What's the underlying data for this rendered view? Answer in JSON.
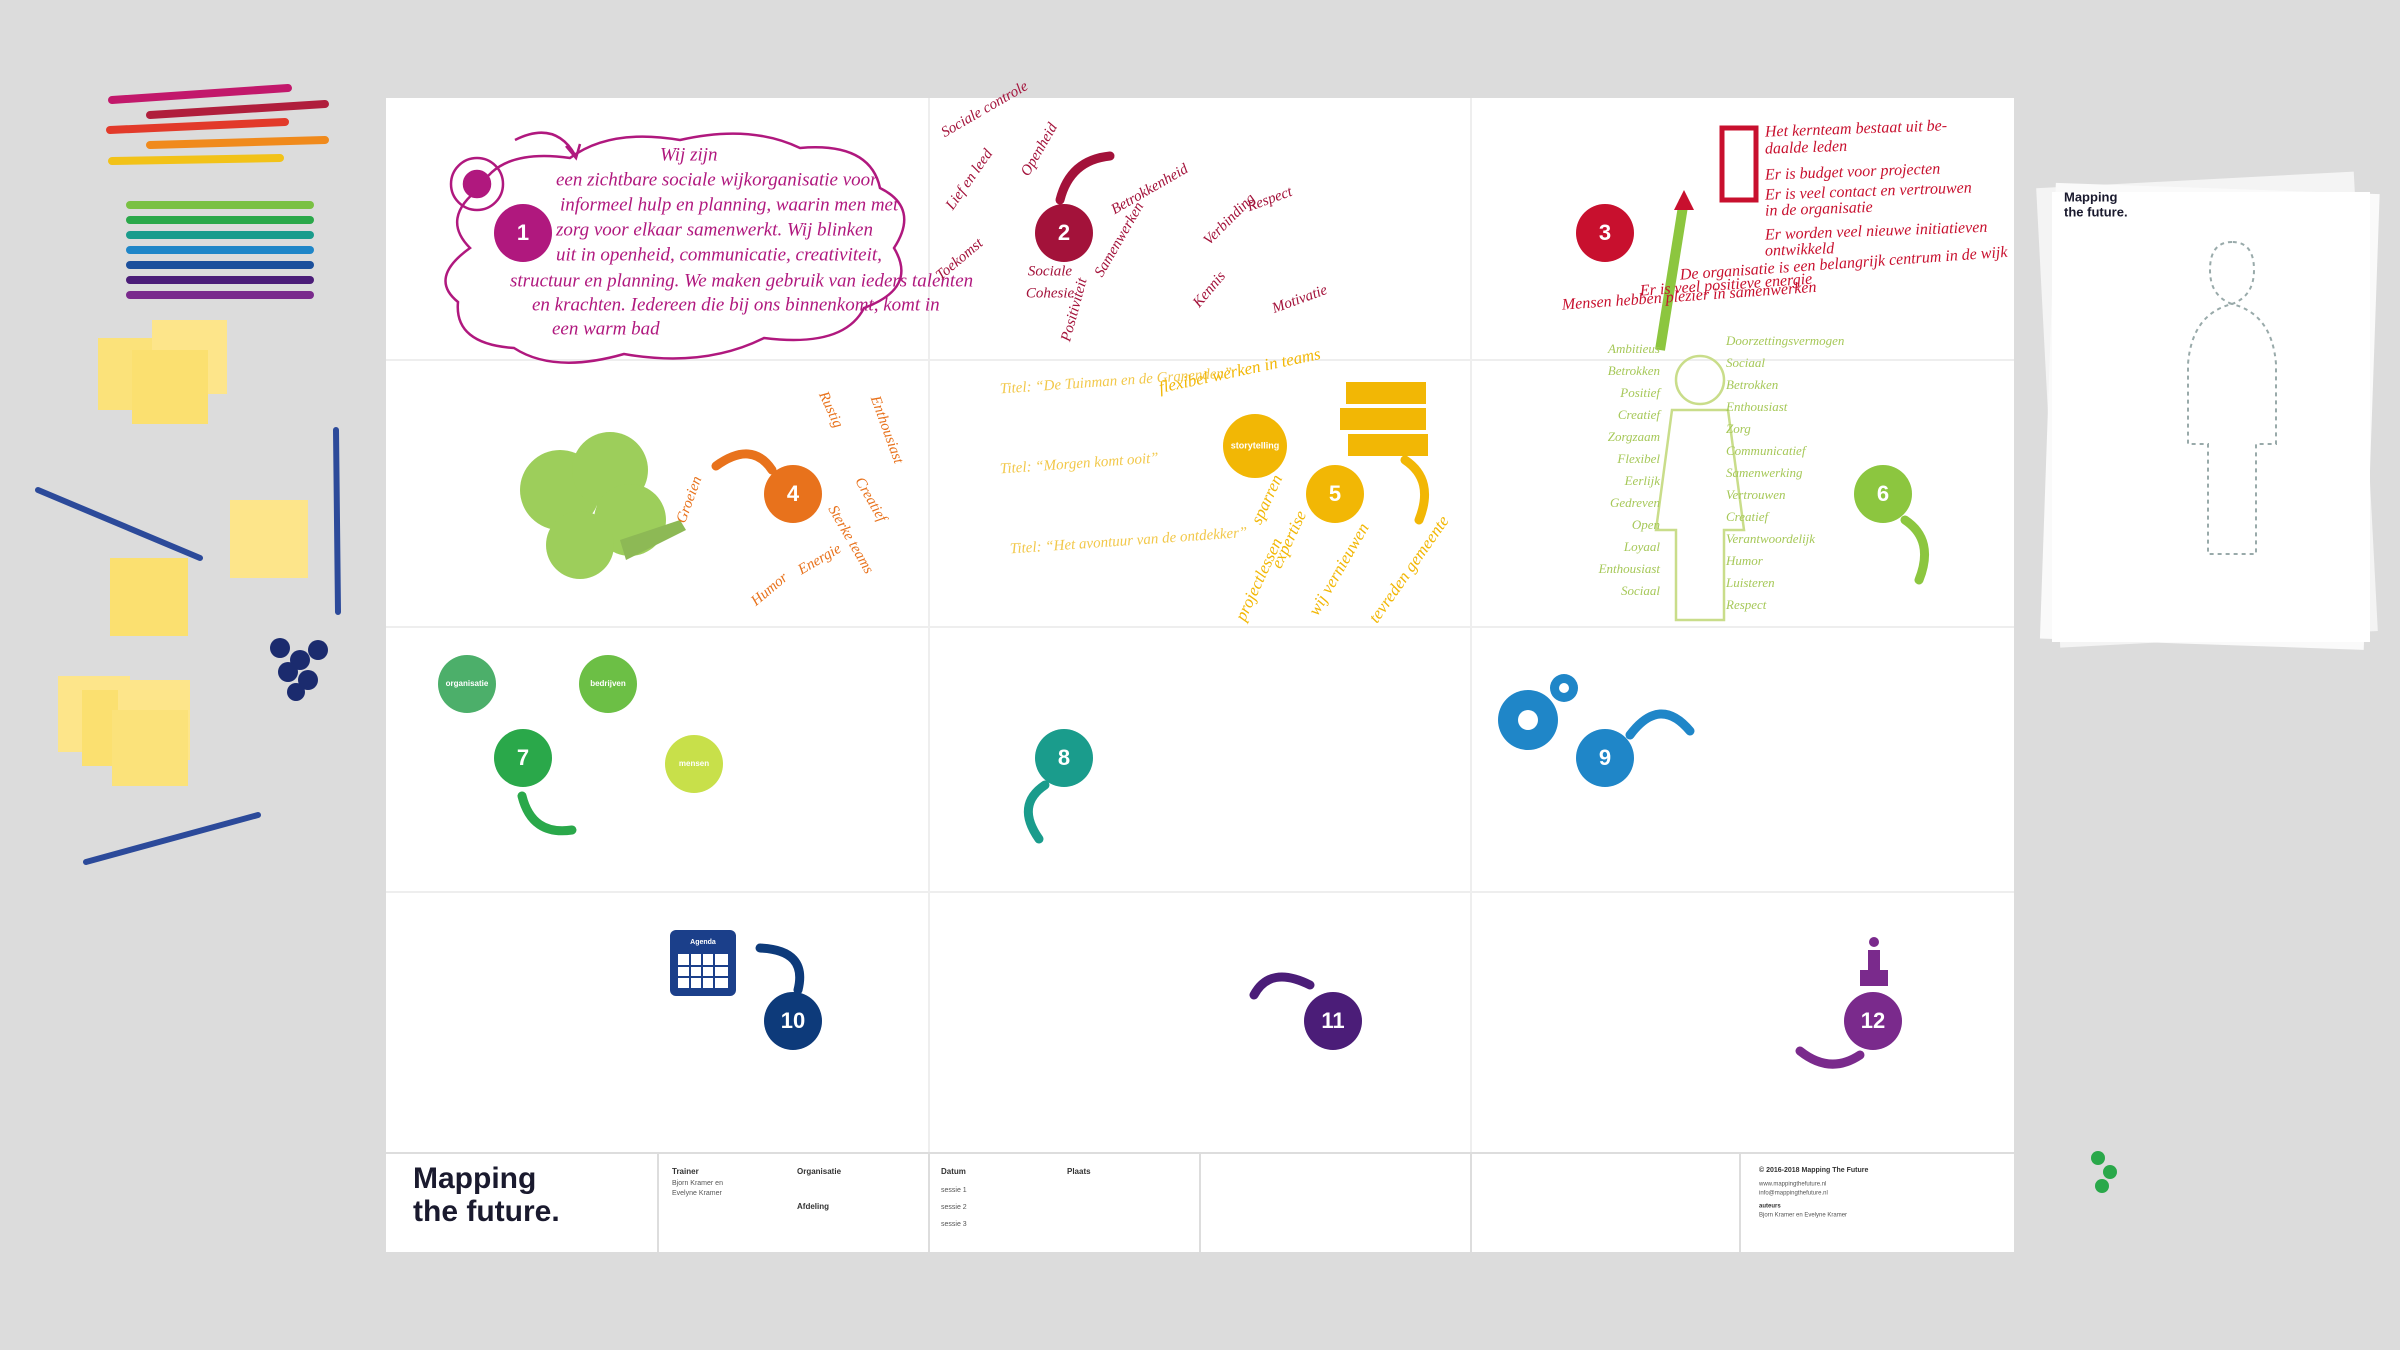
{
  "poster": {
    "steps": [
      {
        "number": "1",
        "color": "#b0187e"
      },
      {
        "number": "2",
        "color": "#a3123a"
      },
      {
        "number": "3",
        "color": "#c8102e"
      },
      {
        "number": "4",
        "color": "#e8721c"
      },
      {
        "number": "5",
        "color": "#f2b705"
      },
      {
        "number": "6",
        "color": "#8cc63f"
      },
      {
        "number": "7",
        "color": "#2aa84a"
      },
      {
        "number": "8",
        "color": "#1a9c8c"
      },
      {
        "number": "9",
        "color": "#1f86c8"
      },
      {
        "number": "10",
        "color": "#0d3a7a"
      },
      {
        "number": "11",
        "color": "#4b1d78"
      },
      {
        "number": "12",
        "color": "#7a2a8c"
      }
    ],
    "mission": [
      "Wij zijn",
      "een zichtbare sociale wijkorganisatie voor",
      "informeel hulp en planning, waarin men met",
      "zorg voor elkaar samenwerkt. Wij blinken",
      "uit in openheid, communicatie, creativiteit,",
      "structuur en planning. We maken gebruik van ieders talenten",
      "en krachten. Iedereen die bij ons binnenkomt, komt in",
      "een warm bad"
    ],
    "values_map": [
      "Sociale controle",
      "Lief en leed",
      "Toekomst",
      "Openheid",
      "Sociale",
      "Cohesie",
      "Positiviteit",
      "Samenwerken",
      "Betrokkenheid",
      "Verbinding",
      "Kennis",
      "Respect",
      "Motivatie"
    ],
    "ambitions": [
      "Het kernteam bestaat uit be-",
      "daalde leden",
      "Er is budget voor projecten",
      "Er is veel contact en vertrouwen",
      "in de organisatie",
      "Er worden veel nieuwe initiatieven",
      "ontwikkeld",
      "De organisatie is een belangrijk centrum in de wijk",
      "Er is veel positieve energie",
      "Mensen hebben plezier in samenwerken"
    ],
    "talents": [
      "Rustig",
      "Enthousiast",
      "Creatief",
      "Sterke teams",
      "Energie",
      "Humor",
      "Groeien"
    ],
    "storytelling": "storytelling",
    "titles": [
      "Titel: “De Tuinman en de Granenden”",
      "Titel: “Morgen komt ooit”",
      "Titel: “Het avontuur van de ontdekker”"
    ],
    "growth": [
      "flexibel werken in teams",
      "sparren",
      "expertise",
      "projectlessen",
      "wij vernieuwen",
      "tevreden gemeente"
    ],
    "qualities_left": [
      "Ambitieus",
      "Betrokken",
      "Positief",
      "Creatief",
      "Zorgzaam",
      "Flexibel",
      "Eerlijk",
      "Gedreven",
      "Open",
      "Loyaal",
      "Enthousiast",
      "Sociaal"
    ],
    "qualities_right": [
      "Doorzettingsvermogen",
      "Sociaal",
      "Betrokken",
      "Enthousiast",
      "Zorg",
      "Communicatief",
      "Samenwerking",
      "Vertrouwen",
      "Creatief",
      "Verantwoordelijk",
      "Humor",
      "Luisteren",
      "Respect"
    ],
    "stakeholders": [
      "organisatie",
      "bedrijven",
      "mensen"
    ],
    "calendar": "Agenda",
    "footer": {
      "logo": [
        "Mapping",
        "the future."
      ],
      "trainer_label": "Trainer",
      "trainer": [
        "Bjorn Kramer en",
        "Evelyne Kramer"
      ],
      "organisation_label": "Organisatie",
      "department_label": "Afdeling",
      "date_label": "Datum",
      "sessions": [
        "sessie 1",
        "sessie 2",
        "sessie 3"
      ],
      "place_label": "Plaats",
      "copyright": "© 2016-2018 Mapping The Future",
      "contact": [
        "www.mappingthefuture.nl",
        "info@mappingthefuture.nl"
      ],
      "authors_label": "auteurs",
      "authors": "Bjorn Kramer en Evelyne Kramer"
    },
    "sheet": {
      "title": [
        "Mapping",
        "the future."
      ]
    }
  }
}
